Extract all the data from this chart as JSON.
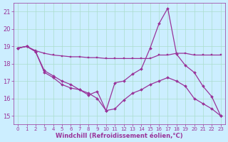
{
  "background_color": "#cceeff",
  "grid_color": "#aaddcc",
  "line_color": "#993399",
  "xlabel": "Windchill (Refroidissement éolien,°C)",
  "xlabel_color": "#993399",
  "tick_color": "#993399",
  "xlim": [
    -0.5,
    23.5
  ],
  "ylim": [
    14.5,
    21.5
  ],
  "yticks": [
    15,
    16,
    17,
    18,
    19,
    20,
    21
  ],
  "xticks": [
    0,
    1,
    2,
    3,
    4,
    5,
    6,
    7,
    8,
    9,
    10,
    11,
    12,
    13,
    14,
    15,
    16,
    17,
    18,
    19,
    20,
    21,
    22,
    23
  ],
  "line1_x": [
    0,
    1,
    2,
    3,
    4,
    5,
    6,
    7,
    8,
    9,
    10,
    11,
    12,
    13,
    14,
    15,
    16,
    17,
    18,
    19,
    20,
    21,
    22,
    23
  ],
  "line1_y": [
    18.9,
    19.0,
    18.75,
    18.6,
    18.5,
    18.45,
    18.4,
    18.4,
    18.35,
    18.35,
    18.3,
    18.3,
    18.3,
    18.3,
    18.3,
    18.3,
    18.5,
    18.5,
    18.6,
    18.6,
    18.5,
    18.5,
    18.5,
    18.5
  ],
  "line2_x": [
    0,
    1,
    2,
    3,
    4,
    5,
    6,
    7,
    8,
    9,
    10,
    11,
    12,
    13,
    14,
    15,
    16,
    17,
    18,
    19,
    20,
    21,
    22,
    23
  ],
  "line2_y": [
    18.9,
    19.0,
    18.7,
    17.5,
    17.2,
    16.8,
    16.6,
    16.5,
    16.2,
    16.4,
    15.3,
    16.9,
    17.0,
    17.4,
    17.7,
    18.9,
    20.3,
    21.2,
    18.55,
    17.9,
    17.5,
    16.7,
    16.1,
    15.0
  ],
  "line3_x": [
    0,
    1,
    2,
    3,
    4,
    5,
    6,
    7,
    8,
    9,
    10,
    11,
    12,
    13,
    14,
    15,
    16,
    17,
    18,
    19,
    20,
    21,
    22,
    23
  ],
  "line3_y": [
    18.9,
    19.0,
    18.7,
    17.6,
    17.3,
    17.0,
    16.8,
    16.5,
    16.3,
    16.0,
    15.3,
    15.4,
    15.9,
    16.3,
    16.5,
    16.8,
    17.0,
    17.2,
    17.0,
    16.7,
    16.0,
    15.7,
    15.4,
    15.0
  ]
}
